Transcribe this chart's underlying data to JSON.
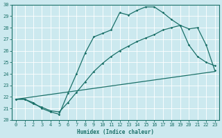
{
  "xlabel": "Humidex (Indice chaleur)",
  "xlim": [
    -0.5,
    23.5
  ],
  "ylim": [
    20,
    30
  ],
  "xticks": [
    0,
    1,
    2,
    3,
    4,
    5,
    6,
    7,
    8,
    9,
    10,
    11,
    12,
    13,
    14,
    15,
    16,
    17,
    18,
    19,
    20,
    21,
    22,
    23
  ],
  "yticks": [
    20,
    21,
    22,
    23,
    24,
    25,
    26,
    27,
    28,
    29,
    30
  ],
  "bg_color": "#cce9ef",
  "grid_color": "#ffffff",
  "line_color": "#1a7068",
  "curve1_x": [
    0,
    1,
    2,
    3,
    4,
    5,
    6,
    7,
    8,
    9,
    10,
    11,
    12,
    13,
    14,
    15,
    16,
    17,
    18,
    19,
    20,
    21,
    22,
    23
  ],
  "curve1_y": [
    21.8,
    21.8,
    21.5,
    21.0,
    20.7,
    20.5,
    22.3,
    24.0,
    25.8,
    27.2,
    27.5,
    27.8,
    29.3,
    29.1,
    29.5,
    29.8,
    29.8,
    29.3,
    28.7,
    28.2,
    27.9,
    28.0,
    26.5,
    24.3
  ],
  "curve2_x": [
    0,
    1,
    2,
    3,
    4,
    5,
    6,
    7,
    8,
    9,
    10,
    11,
    12,
    13,
    14,
    15,
    16,
    17,
    18,
    19,
    20,
    21,
    22,
    23
  ],
  "curve2_y": [
    21.8,
    21.8,
    21.4,
    21.1,
    20.8,
    20.7,
    21.5,
    22.4,
    23.3,
    24.2,
    24.9,
    25.5,
    26.0,
    26.4,
    26.8,
    27.1,
    27.4,
    27.8,
    28.0,
    28.2,
    26.5,
    25.5,
    25.0,
    24.7
  ],
  "curve3_x": [
    0,
    23
  ],
  "curve3_y": [
    21.8,
    24.2
  ]
}
